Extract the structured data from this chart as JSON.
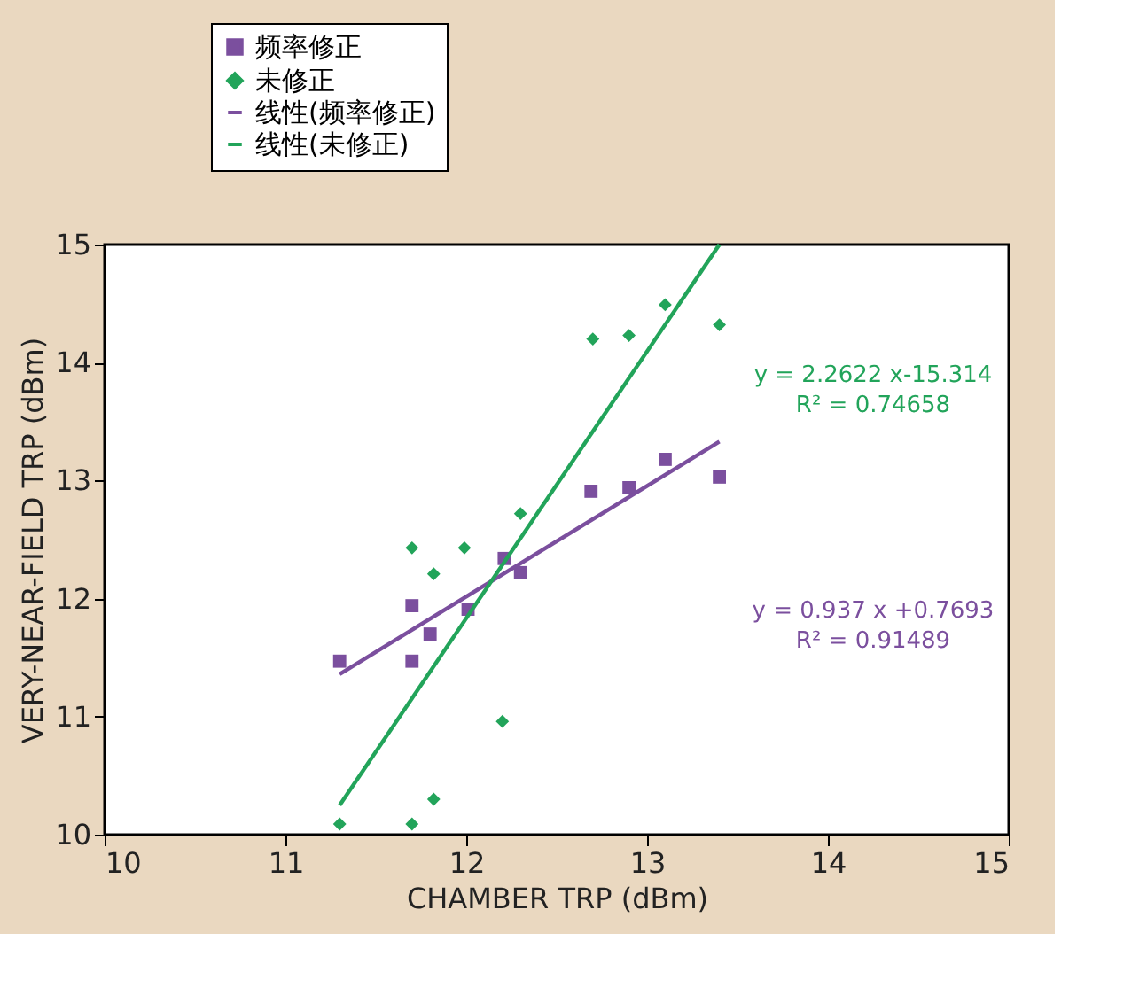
{
  "chart_data": {
    "type": "scatter",
    "xlabel": "CHAMBER TRP (dBm)",
    "ylabel": "VERY-NEAR-FIELD TRP (dBm)",
    "xlim": [
      10,
      15
    ],
    "ylim": [
      10,
      15
    ],
    "xticks": [
      10,
      11,
      12,
      13,
      14,
      15
    ],
    "yticks": [
      10,
      11,
      12,
      13,
      14,
      15
    ],
    "grid": false,
    "legend": "top left",
    "series": [
      {
        "name": "频率修正",
        "marker": "square",
        "color": "#7b4f9e",
        "x": [
          11.3,
          11.7,
          11.7,
          11.8,
          12.01,
          12.21,
          12.3,
          12.69,
          12.9,
          13.1,
          13.4
        ],
        "values": [
          11.47,
          11.94,
          11.47,
          11.7,
          11.91,
          12.34,
          12.22,
          12.91,
          12.94,
          13.18,
          13.03
        ]
      },
      {
        "name": "未修正",
        "marker": "diamond",
        "color": "#22a45a",
        "x": [
          11.3,
          11.7,
          11.82,
          11.7,
          11.82,
          11.99,
          12.2,
          12.3,
          12.7,
          12.9,
          13.1,
          13.4
        ],
        "values": [
          10.09,
          10.09,
          10.3,
          12.43,
          12.21,
          12.43,
          10.96,
          12.72,
          14.2,
          14.23,
          14.49,
          14.32
        ]
      },
      {
        "name": "线性(频率修正)",
        "type": "line",
        "marker": "none",
        "color": "#7b4f9e",
        "x": [
          11.3,
          13.4
        ],
        "values": [
          11.36,
          13.33
        ]
      },
      {
        "name": "线性(未修正)",
        "type": "line",
        "marker": "none",
        "color": "#22a45a",
        "x": [
          11.3,
          13.4
        ],
        "values": [
          10.25,
          15.0
        ]
      }
    ],
    "annotations": [
      "y = 2.2622 x-15.314",
      "R² = 0.74658",
      "y = 0.937 x +0.7693",
      "R² = 0.91489"
    ]
  }
}
